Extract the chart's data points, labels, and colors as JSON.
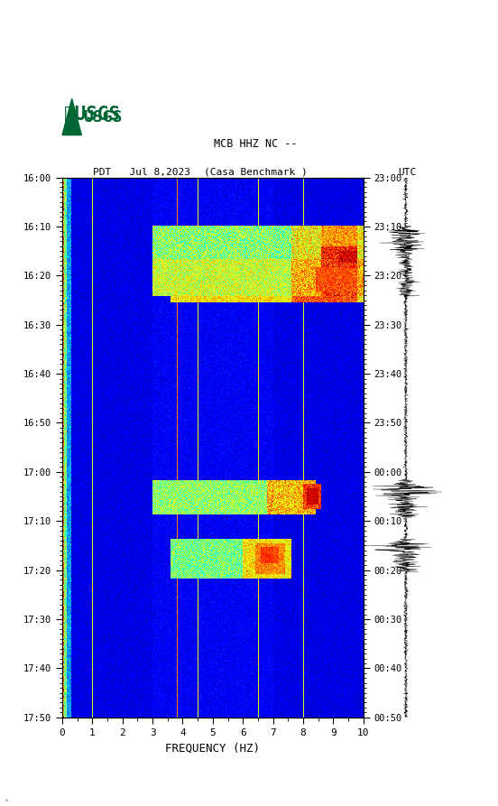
{
  "title_line1": "MCB HHZ NC --",
  "title_line2": "(Casa Benchmark )",
  "left_label": "PDT   Jul 8,2023",
  "right_label": "UTC",
  "xlabel": "FREQUENCY (HZ)",
  "freq_min": 0,
  "freq_max": 10,
  "time_ticks_pdt": [
    "16:00",
    "16:10",
    "16:20",
    "16:30",
    "16:40",
    "16:50",
    "17:00",
    "17:10",
    "17:20",
    "17:30",
    "17:40",
    "17:50"
  ],
  "time_ticks_utc": [
    "23:00",
    "23:10",
    "23:20",
    "23:30",
    "23:40",
    "23:50",
    "00:00",
    "00:10",
    "00:20",
    "00:30",
    "00:40",
    "00:50"
  ],
  "freq_ticks": [
    0,
    1,
    2,
    3,
    4,
    5,
    6,
    7,
    8,
    9,
    10
  ],
  "fig_bg": "#ffffff",
  "colormap": "jet",
  "seed": 42,
  "n_freq": 500,
  "n_time": 660,
  "usgs_logo_color": "#006633"
}
